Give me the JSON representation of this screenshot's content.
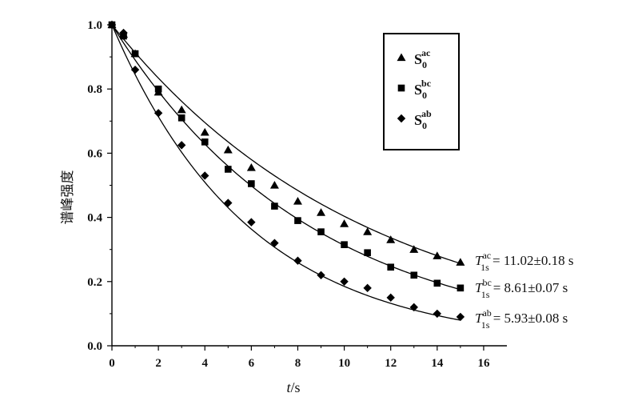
{
  "chart_data": {
    "type": "scatter",
    "title": "",
    "xlabel_italic": "t",
    "xlabel_rest": "/s",
    "ylabel": "谱峰强度",
    "xlim": [
      0,
      17
    ],
    "ylim": [
      0,
      1.0
    ],
    "xticks": [
      "0",
      "2",
      "4",
      "6",
      "8",
      "10",
      "12",
      "14",
      "16"
    ],
    "yticks": [
      "0.0",
      "0.2",
      "0.4",
      "0.6",
      "0.8",
      "1.0"
    ],
    "legend_position": "top-right",
    "grid": false,
    "x": [
      0,
      0.5,
      1,
      2,
      3,
      4,
      5,
      6,
      7,
      8,
      9,
      10,
      11,
      12,
      13,
      14,
      15
    ],
    "series": [
      {
        "name_base": "S",
        "name_sub": "0",
        "name_sup": "ac",
        "marker": "triangle",
        "values": [
          1.0,
          0.97,
          0.91,
          0.79,
          0.735,
          0.665,
          0.61,
          0.555,
          0.5,
          0.45,
          0.415,
          0.38,
          0.355,
          0.33,
          0.3,
          0.28,
          0.26
        ],
        "fit_label": {
          "T": "T",
          "sup": "ac",
          "sub": "1s",
          "value": " = 11.02±0.18 s"
        },
        "fit_T1": 11.02
      },
      {
        "name_base": "S",
        "name_sub": "0",
        "name_sup": "bc",
        "marker": "square",
        "values": [
          1.0,
          0.965,
          0.91,
          0.8,
          0.71,
          0.635,
          0.55,
          0.505,
          0.435,
          0.39,
          0.355,
          0.315,
          0.29,
          0.245,
          0.22,
          0.195,
          0.18
        ],
        "fit_label": {
          "T": "T",
          "sup": "bc",
          "sub": "1s",
          "value": " = 8.61±0.07 s"
        },
        "fit_T1": 8.61
      },
      {
        "name_base": "S",
        "name_sub": "0",
        "name_sup": "ab",
        "marker": "diamond",
        "values": [
          1.0,
          0.975,
          0.86,
          0.725,
          0.625,
          0.53,
          0.445,
          0.385,
          0.32,
          0.265,
          0.22,
          0.2,
          0.18,
          0.15,
          0.12,
          0.1,
          0.09
        ],
        "fit_label": {
          "T": "T",
          "sup": "ab",
          "sub": "1s",
          "value": " = 5.93±0.08 s"
        },
        "fit_T1": 5.93
      }
    ]
  }
}
